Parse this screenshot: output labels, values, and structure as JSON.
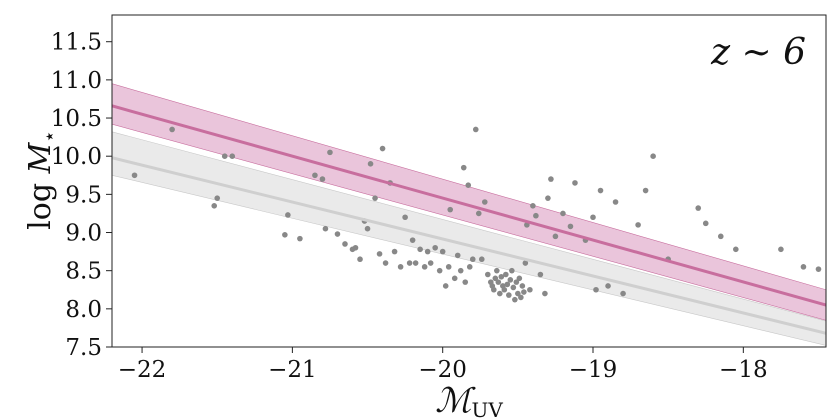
{
  "chart_data": {
    "type": "scatter",
    "xlabel_main": "ℳ",
    "xlabel_sub": "UV",
    "ylabel_main": "log ",
    "ylabel_var": "M",
    "ylabel_sub": "⋆",
    "annotation": "z ∼ 6",
    "xlim": [
      -22.2,
      -17.45
    ],
    "ylim": [
      7.5,
      11.85
    ],
    "xticks": [
      -22,
      -21,
      -20,
      -19,
      -18
    ],
    "xtick_labels": [
      "−22",
      "−21",
      "−20",
      "−19",
      "−18"
    ],
    "yticks": [
      7.5,
      8.0,
      8.5,
      9.0,
      9.5,
      10.0,
      10.5,
      11.0,
      11.5
    ],
    "ytick_labels": [
      "7.5",
      "8.0",
      "8.5",
      "9.0",
      "9.5",
      "10.0",
      "10.5",
      "11.0",
      "11.5"
    ],
    "grid": false,
    "colors": {
      "pink_line": "#c86e9e",
      "pink_band": "#e3b1cf",
      "gray_line": "#cfcfcf",
      "gray_band": "#e6e6e6",
      "points": "#888888"
    },
    "series": [
      {
        "kind": "fit",
        "color_key": "pink",
        "line": [
          [
            -22.2,
            10.66
          ],
          [
            -17.45,
            8.05
          ]
        ],
        "band_upper": [
          [
            -22.2,
            10.95
          ],
          [
            -17.45,
            8.25
          ]
        ],
        "band_lower": [
          [
            -22.2,
            10.42
          ],
          [
            -17.45,
            7.85
          ]
        ]
      },
      {
        "kind": "fit",
        "color_key": "gray",
        "line": [
          [
            -22.2,
            9.98
          ],
          [
            -17.45,
            7.68
          ]
        ],
        "band_upper": [
          [
            -22.2,
            10.32
          ],
          [
            -17.45,
            7.84
          ]
        ],
        "band_lower": [
          [
            -22.2,
            9.75
          ],
          [
            -17.45,
            7.52
          ]
        ]
      },
      {
        "kind": "points",
        "points": [
          [
            -22.05,
            9.75
          ],
          [
            -21.8,
            10.35
          ],
          [
            -21.5,
            9.45
          ],
          [
            -21.52,
            9.35
          ],
          [
            -21.45,
            10.0
          ],
          [
            -21.4,
            10.0
          ],
          [
            -21.03,
            9.23
          ],
          [
            -21.05,
            8.97
          ],
          [
            -20.95,
            8.92
          ],
          [
            -20.85,
            9.75
          ],
          [
            -20.8,
            9.7
          ],
          [
            -20.78,
            9.05
          ],
          [
            -20.75,
            10.05
          ],
          [
            -20.7,
            8.98
          ],
          [
            -20.65,
            8.85
          ],
          [
            -20.6,
            8.78
          ],
          [
            -20.58,
            8.8
          ],
          [
            -20.55,
            8.65
          ],
          [
            -20.52,
            9.15
          ],
          [
            -20.5,
            9.05
          ],
          [
            -20.48,
            9.9
          ],
          [
            -20.45,
            9.45
          ],
          [
            -20.42,
            8.72
          ],
          [
            -20.4,
            10.1
          ],
          [
            -20.38,
            8.6
          ],
          [
            -20.35,
            9.65
          ],
          [
            -20.32,
            8.75
          ],
          [
            -20.28,
            8.55
          ],
          [
            -20.25,
            9.2
          ],
          [
            -20.22,
            8.6
          ],
          [
            -20.2,
            8.9
          ],
          [
            -20.18,
            8.6
          ],
          [
            -20.15,
            8.78
          ],
          [
            -20.12,
            8.55
          ],
          [
            -20.1,
            8.75
          ],
          [
            -20.08,
            8.6
          ],
          [
            -20.05,
            8.8
          ],
          [
            -20.02,
            8.5
          ],
          [
            -20.0,
            8.75
          ],
          [
            -19.98,
            8.3
          ],
          [
            -19.96,
            8.55
          ],
          [
            -19.95,
            9.3
          ],
          [
            -19.92,
            8.4
          ],
          [
            -19.9,
            8.7
          ],
          [
            -19.88,
            8.5
          ],
          [
            -19.86,
            9.85
          ],
          [
            -19.85,
            8.35
          ],
          [
            -19.83,
            9.62
          ],
          [
            -19.82,
            8.55
          ],
          [
            -19.8,
            8.65
          ],
          [
            -19.78,
            10.35
          ],
          [
            -19.76,
            9.25
          ],
          [
            -19.74,
            8.65
          ],
          [
            -19.72,
            9.4
          ],
          [
            -19.7,
            8.45
          ],
          [
            -19.68,
            8.35
          ],
          [
            -19.67,
            8.3
          ],
          [
            -19.66,
            8.25
          ],
          [
            -19.65,
            8.4
          ],
          [
            -19.64,
            8.5
          ],
          [
            -19.63,
            8.35
          ],
          [
            -19.62,
            8.2
          ],
          [
            -19.61,
            8.42
          ],
          [
            -19.6,
            8.3
          ],
          [
            -19.59,
            8.25
          ],
          [
            -19.58,
            8.45
          ],
          [
            -19.57,
            8.32
          ],
          [
            -19.56,
            8.18
          ],
          [
            -19.55,
            8.38
          ],
          [
            -19.54,
            8.5
          ],
          [
            -19.53,
            8.28
          ],
          [
            -19.52,
            8.12
          ],
          [
            -19.51,
            8.35
          ],
          [
            -19.5,
            8.2
          ],
          [
            -19.49,
            8.4
          ],
          [
            -19.48,
            8.15
          ],
          [
            -19.47,
            8.3
          ],
          [
            -19.46,
            8.22
          ],
          [
            -19.45,
            8.6
          ],
          [
            -19.44,
            9.1
          ],
          [
            -19.42,
            8.25
          ],
          [
            -19.4,
            9.35
          ],
          [
            -19.38,
            9.22
          ],
          [
            -19.35,
            8.45
          ],
          [
            -19.32,
            8.2
          ],
          [
            -19.3,
            9.45
          ],
          [
            -19.28,
            9.7
          ],
          [
            -19.25,
            8.95
          ],
          [
            -19.2,
            9.25
          ],
          [
            -19.15,
            9.08
          ],
          [
            -19.12,
            9.65
          ],
          [
            -19.05,
            8.9
          ],
          [
            -19.0,
            9.2
          ],
          [
            -18.98,
            8.25
          ],
          [
            -18.95,
            9.55
          ],
          [
            -18.9,
            8.3
          ],
          [
            -18.85,
            9.4
          ],
          [
            -18.8,
            8.2
          ],
          [
            -18.7,
            9.1
          ],
          [
            -18.65,
            9.55
          ],
          [
            -18.6,
            10.0
          ],
          [
            -18.5,
            8.65
          ],
          [
            -18.3,
            9.32
          ],
          [
            -18.25,
            9.12
          ],
          [
            -18.15,
            8.95
          ],
          [
            -18.05,
            8.78
          ],
          [
            -17.75,
            8.78
          ],
          [
            -17.6,
            8.55
          ],
          [
            -17.5,
            8.52
          ]
        ]
      }
    ]
  }
}
